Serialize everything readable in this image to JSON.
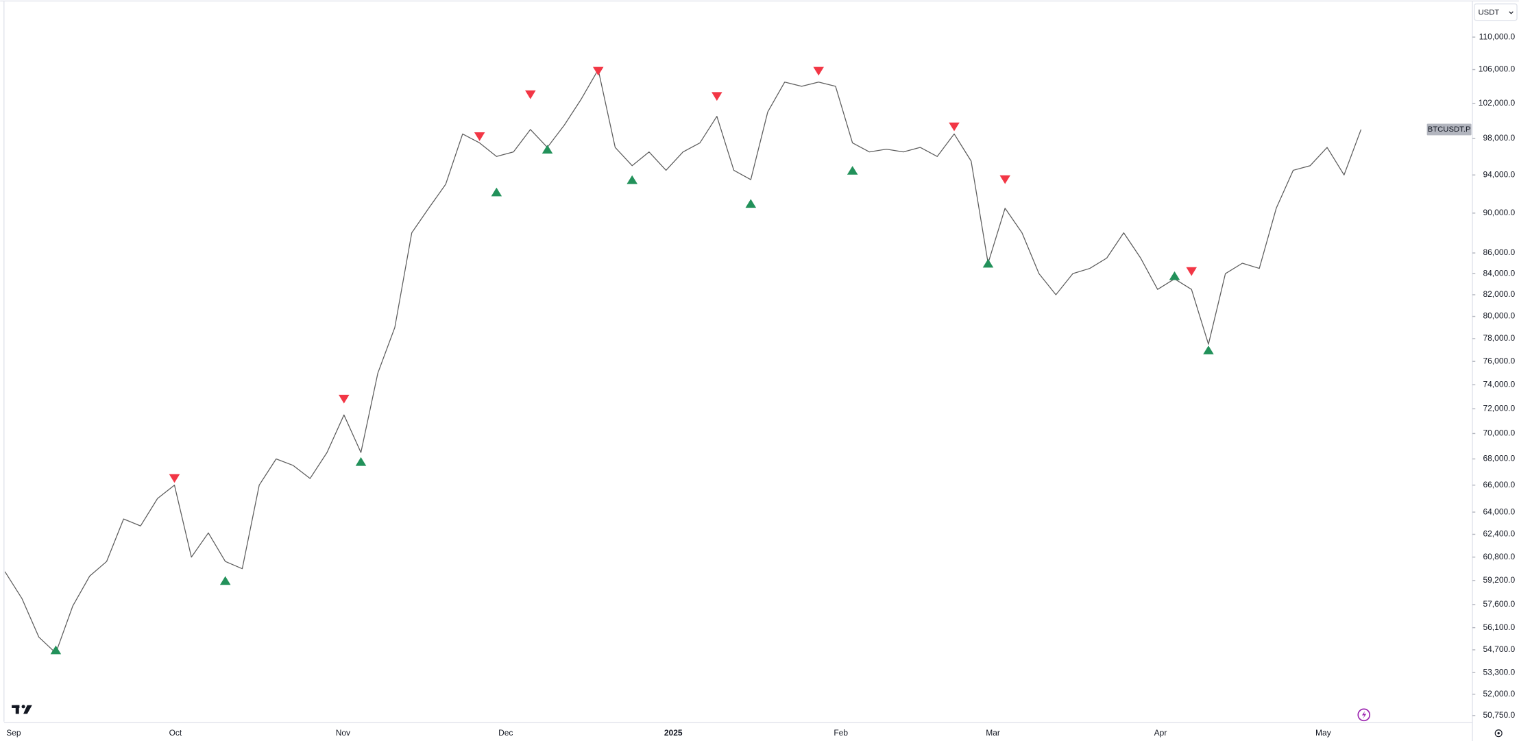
{
  "chart_data": {
    "type": "line",
    "symbol": "BTCUSDT.P",
    "currency": "USDT",
    "yscale": "log",
    "grid": false,
    "xlabels": [
      "Sep",
      "Oct",
      "Nov",
      "Dec",
      "2025",
      "Feb",
      "Mar",
      "Apr",
      "May"
    ],
    "ylim": [
      50400,
      114500
    ],
    "yticks": [
      {
        "value": 110000,
        "label": "110,000.0"
      },
      {
        "value": 106000,
        "label": "106,000.0"
      },
      {
        "value": 102000,
        "label": "102,000.0"
      },
      {
        "value": 98000,
        "label": "98,000.0"
      },
      {
        "value": 94000,
        "label": "94,000.0"
      },
      {
        "value": 90000,
        "label": "90,000.0"
      },
      {
        "value": 86000,
        "label": "86,000.0"
      },
      {
        "value": 84000,
        "label": "84,000.0"
      },
      {
        "value": 82000,
        "label": "82,000.0"
      },
      {
        "value": 80000,
        "label": "80,000.0"
      },
      {
        "value": 78000,
        "label": "78,000.0"
      },
      {
        "value": 76000,
        "label": "76,000.0"
      },
      {
        "value": 74000,
        "label": "74,000.0"
      },
      {
        "value": 72000,
        "label": "72,000.0"
      },
      {
        "value": 70000,
        "label": "70,000.0"
      },
      {
        "value": 68000,
        "label": "68,000.0"
      },
      {
        "value": 66000,
        "label": "66,000.0"
      },
      {
        "value": 64000,
        "label": "64,000.0"
      },
      {
        "value": 62400,
        "label": "62,400.0"
      },
      {
        "value": 60800,
        "label": "60,800.0"
      },
      {
        "value": 59200,
        "label": "59,200.0"
      },
      {
        "value": 57600,
        "label": "57,600.0"
      },
      {
        "value": 56100,
        "label": "56,100.0"
      },
      {
        "value": 54700,
        "label": "54,700.0"
      },
      {
        "value": 53300,
        "label": "53,300.0"
      },
      {
        "value": 52000,
        "label": "52,000.0"
      },
      {
        "value": 50750,
        "label": "50,750.0"
      }
    ],
    "series": [
      {
        "color": "#5d5d5d",
        "marker": "none",
        "values": [
          59800,
          58000,
          55500,
          54500,
          57500,
          59500,
          60500,
          63500,
          63000,
          65000,
          66000,
          60800,
          62500,
          60500,
          60000,
          66000,
          68000,
          67500,
          66500,
          68500,
          71500,
          68500,
          75000,
          79000,
          88000,
          90500,
          93000,
          98500,
          97500,
          96000,
          96500,
          99000,
          97000,
          99500,
          102500,
          106000,
          97000,
          95000,
          96500,
          94500,
          96500,
          97500,
          100500,
          94500,
          93500,
          101000,
          104500,
          104000,
          104500,
          104000,
          97500,
          96500,
          96800,
          96500,
          97000,
          96000,
          98500,
          95500,
          85000,
          90500,
          88000,
          84000,
          82000,
          84000,
          84500,
          85500,
          88000,
          85500,
          82500,
          83500,
          82500,
          77500,
          84000,
          85000,
          84500,
          90500,
          94500,
          95000,
          97000,
          94000,
          99000
        ]
      },
      {
        "color": "#22915a",
        "marker": "triangle-up",
        "values": [
          null,
          null,
          null,
          54700,
          null,
          null,
          null,
          null,
          null,
          null,
          null,
          null,
          null,
          59200,
          null,
          null,
          null,
          null,
          null,
          null,
          null,
          67800,
          null,
          null,
          null,
          null,
          null,
          null,
          null,
          92200,
          null,
          null,
          96800,
          null,
          null,
          null,
          null,
          93500,
          null,
          null,
          null,
          null,
          null,
          null,
          91000,
          null,
          null,
          null,
          null,
          null,
          94500,
          null,
          null,
          null,
          null,
          null,
          null,
          null,
          85000,
          null,
          null,
          null,
          null,
          null,
          null,
          null,
          null,
          null,
          null,
          83800,
          null,
          77000,
          null,
          null,
          null,
          null,
          null,
          null,
          null,
          null,
          null
        ]
      },
      {
        "color": "#f23645",
        "marker": "triangle-down",
        "values": [
          null,
          null,
          null,
          null,
          null,
          null,
          null,
          null,
          null,
          null,
          66500,
          null,
          null,
          null,
          null,
          null,
          null,
          null,
          null,
          null,
          72800,
          null,
          null,
          null,
          null,
          null,
          null,
          null,
          98200,
          null,
          null,
          103000,
          null,
          null,
          null,
          105800,
          null,
          null,
          null,
          null,
          null,
          null,
          102800,
          null,
          null,
          null,
          null,
          null,
          105800,
          null,
          null,
          null,
          null,
          null,
          null,
          null,
          99300,
          null,
          null,
          93500,
          null,
          null,
          null,
          null,
          null,
          null,
          null,
          null,
          null,
          null,
          84200,
          null,
          null,
          null,
          null,
          null,
          null,
          null,
          null,
          null,
          null
        ]
      }
    ]
  }
}
